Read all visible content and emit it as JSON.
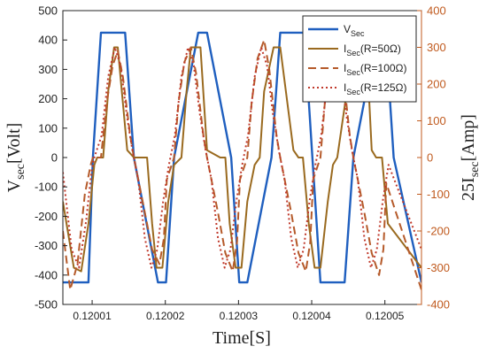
{
  "chart_data": {
    "type": "line",
    "xlabel": "Time[S]",
    "ylabel_left": "V_sec[Volt]",
    "ylabel_right": "25I_sec[Amp]",
    "xlim": [
      0.120006,
      0.120055
    ],
    "ylim_left": [
      -500,
      500
    ],
    "ylim_right": [
      -400,
      400
    ],
    "x_ticks": [
      0.12001,
      0.12002,
      0.12003,
      0.12004,
      0.12005
    ],
    "x_tick_labels": [
      "0.12001",
      "0.12002",
      "0.12003",
      "0.12004",
      "0.12005"
    ],
    "y_ticks_left": [
      -500,
      -400,
      -300,
      -200,
      -100,
      0,
      100,
      200,
      300,
      400,
      500
    ],
    "y_ticks_right": [
      -400,
      -300,
      -200,
      -100,
      0,
      100,
      200,
      300,
      400
    ],
    "grid": false,
    "legend_position": "top-right",
    "colors": {
      "vsec": "#1f5fbf",
      "i50": "#9a6a1f",
      "i100": "#b55a2a",
      "i125": "#c0392b",
      "right_axis": "#c05a1e"
    },
    "series": [
      {
        "name": "V_Sec",
        "legend_main": "V",
        "legend_sub": "Sec",
        "legend_tail": "",
        "axis": "left",
        "style": "solid",
        "color": "#1f5fbf",
        "x": [
          0.120006,
          0.1200095,
          0.1200101,
          0.1200112,
          0.1200145,
          0.1200157,
          0.120019,
          0.1200201,
          0.1200212,
          0.1200245,
          0.1200257,
          0.120029,
          0.1200301,
          0.1200312,
          0.1200345,
          0.1200357,
          0.120039,
          0.1200401,
          0.1200412,
          0.1200445,
          0.1200457,
          0.120049,
          0.1200501,
          0.1200512,
          0.120055
        ],
        "y": [
          -425,
          -425,
          0,
          425,
          425,
          0,
          -425,
          -425,
          0,
          425,
          425,
          0,
          -425,
          -425,
          0,
          425,
          425,
          0,
          -425,
          -425,
          0,
          425,
          425,
          0,
          -425
        ]
      },
      {
        "name": "I_Sec(R=50Ω)",
        "legend_main": "I",
        "legend_sub": "Sec",
        "legend_tail": "(R=50Ω)",
        "axis": "right",
        "style": "solid",
        "color": "#9a6a1f",
        "x": [
          0.120006,
          0.1200075,
          0.1200085,
          0.1200095,
          0.1200103,
          0.1200107,
          0.1200115,
          0.1200122,
          0.120013,
          0.1200135,
          0.1200148,
          0.1200157,
          0.1200175,
          0.1200182,
          0.1200188,
          0.1200196,
          0.1200204,
          0.1200212,
          0.1200222,
          0.1200229,
          0.1200235,
          0.1200248,
          0.1200257,
          0.1200275,
          0.1200282,
          0.1200288,
          0.1200296,
          0.1200304,
          0.1200312,
          0.1200322,
          0.1200329,
          0.1200335,
          0.1200348,
          0.1200357,
          0.1200375,
          0.1200382,
          0.1200388,
          0.1200396,
          0.1200404,
          0.1200412,
          0.1200422,
          0.1200429,
          0.1200435,
          0.1200448,
          0.1200457,
          0.1200475,
          0.1200482,
          0.1200488,
          0.1200496,
          0.1200504,
          0.120055
        ],
        "y": [
          -120,
          -300,
          -310,
          -180,
          -20,
          0,
          0,
          180,
          300,
          300,
          20,
          0,
          0,
          -180,
          -300,
          -300,
          -120,
          -20,
          0,
          180,
          300,
          300,
          20,
          0,
          0,
          -180,
          -300,
          -300,
          -120,
          -20,
          0,
          180,
          300,
          300,
          20,
          0,
          0,
          -180,
          -300,
          -300,
          -120,
          -20,
          0,
          180,
          300,
          300,
          20,
          0,
          0,
          -180,
          -300
        ]
      },
      {
        "name": "I_Sec(R=100Ω)",
        "legend_main": "I",
        "legend_sub": "Sec",
        "legend_tail": "(R=100Ω)",
        "axis": "right",
        "style": "dashed",
        "color": "#b55a2a",
        "x": [
          0.120006,
          0.120007,
          0.120008,
          0.120009,
          0.1200098,
          0.1200101,
          0.1200112,
          0.120012,
          0.1200128,
          0.1200135,
          0.1200142,
          0.1200152,
          0.1200157,
          0.1200172,
          0.1200182,
          0.1200192,
          0.1200198,
          0.1200202,
          0.1200212,
          0.1200218,
          0.1200226,
          0.1200235,
          0.1200242,
          0.1200252,
          0.1200257,
          0.1200272,
          0.1200282,
          0.1200292,
          0.1200298,
          0.1200302,
          0.1200312,
          0.1200318,
          0.1200326,
          0.1200335,
          0.1200342,
          0.1200352,
          0.1200357,
          0.1200372,
          0.1200382,
          0.1200392,
          0.1200398,
          0.1200402,
          0.1200412,
          0.1200418,
          0.1200426,
          0.1200435,
          0.1200442,
          0.1200452,
          0.1200457,
          0.1200472,
          0.1200482,
          0.1200492,
          0.1200498,
          0.1200502,
          0.120055
        ],
        "y": [
          -200,
          -360,
          -290,
          -100,
          -20,
          0,
          0,
          150,
          250,
          290,
          220,
          60,
          0,
          -150,
          -250,
          -290,
          -220,
          -60,
          0,
          150,
          260,
          300,
          230,
          60,
          0,
          -150,
          -260,
          -310,
          -230,
          -60,
          0,
          150,
          270,
          320,
          240,
          60,
          0,
          -150,
          -260,
          -310,
          -230,
          -60,
          0,
          150,
          270,
          340,
          250,
          60,
          0,
          -150,
          -260,
          -320,
          -250,
          -70,
          -360
        ]
      },
      {
        "name": "I_Sec(R=125Ω)",
        "legend_main": "I",
        "legend_sub": "Sec",
        "legend_tail": "(R=125Ω)",
        "axis": "right",
        "style": "dotted",
        "color": "#c0392b",
        "x": [
          0.120006,
          0.1200072,
          0.1200082,
          0.1200092,
          0.1200099,
          0.1200103,
          0.1200113,
          0.1200122,
          0.1200131,
          0.1200139,
          0.1200147,
          0.1200155,
          0.1200163,
          0.1200172,
          0.1200181,
          0.1200189,
          0.1200197,
          0.1200205,
          0.1200213,
          0.1200222,
          0.1200231,
          0.1200239,
          0.1200247,
          0.1200255,
          0.1200263,
          0.1200272,
          0.1200281,
          0.1200289,
          0.1200297,
          0.1200305,
          0.1200313,
          0.1200322,
          0.1200331,
          0.1200339,
          0.1200347,
          0.1200355,
          0.1200363,
          0.1200372,
          0.1200381,
          0.1200389,
          0.1200397,
          0.1200405,
          0.1200413,
          0.1200422,
          0.1200431,
          0.1200439,
          0.1200447,
          0.1200455,
          0.1200463,
          0.1200472,
          0.1200481,
          0.1200489,
          0.1200497,
          0.1200505,
          0.120055
        ],
        "y": [
          -40,
          -250,
          -300,
          -170,
          -40,
          0,
          60,
          220,
          300,
          250,
          120,
          20,
          -60,
          -220,
          -300,
          -250,
          -120,
          -20,
          60,
          220,
          300,
          250,
          120,
          20,
          -60,
          -220,
          -300,
          -250,
          -120,
          -20,
          60,
          220,
          300,
          250,
          120,
          20,
          -60,
          -220,
          -300,
          -250,
          -120,
          -20,
          60,
          220,
          300,
          250,
          120,
          20,
          -60,
          -220,
          -300,
          -250,
          -120,
          -20,
          -250
        ]
      }
    ]
  }
}
